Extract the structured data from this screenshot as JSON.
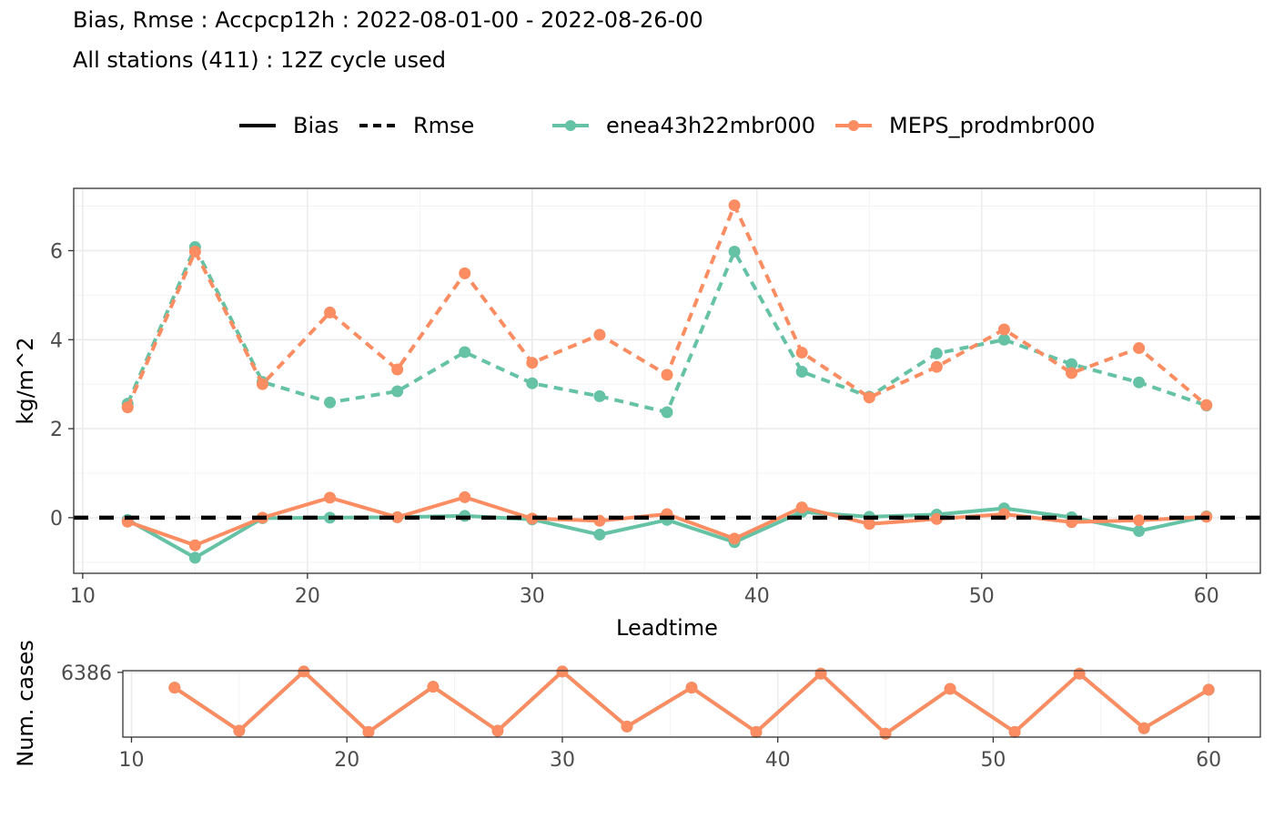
{
  "title": "Bias, Rmse : Accpcp12h : 2022-08-01-00 - 2022-08-26-00",
  "subtitle": "All stations (411) : 12Z cycle used",
  "legend": {
    "linetypes": [
      "Bias",
      "Rmse"
    ],
    "models": [
      "enea43h22mbr000",
      "MEPS_prodmbr000"
    ]
  },
  "colors": {
    "enea": "#66c2a5",
    "meps": "#fc8d62",
    "grid": "#ebebeb",
    "axis": "#333333"
  },
  "chart_data": [
    {
      "type": "line",
      "xlabel": "Leadtime",
      "ylabel": "kg/m^2",
      "xlim": [
        9.6,
        62.4
      ],
      "ylim": [
        -1.25,
        7.4
      ],
      "x_ticks": [
        10,
        20,
        30,
        40,
        50,
        60
      ],
      "y_ticks": [
        0,
        2,
        4,
        6
      ],
      "grid": true,
      "legend_position": "top",
      "x": [
        12,
        15,
        18,
        21,
        24,
        27,
        30,
        33,
        36,
        39,
        42,
        45,
        48,
        51,
        54,
        57,
        60
      ],
      "series": [
        {
          "name": "enea43h22mbr000",
          "stat": "Rmse",
          "linetype": "dashed",
          "values": [
            2.56,
            6.08,
            3.05,
            2.59,
            2.84,
            3.72,
            3.02,
            2.73,
            2.37,
            5.98,
            3.28,
            2.72,
            3.69,
            4.0,
            3.45,
            3.04,
            2.52
          ]
        },
        {
          "name": "MEPS_prodmbr000",
          "stat": "Rmse",
          "linetype": "dashed",
          "values": [
            2.48,
            5.98,
            3.0,
            4.61,
            3.33,
            5.49,
            3.48,
            4.11,
            3.21,
            7.02,
            3.71,
            2.7,
            3.39,
            4.23,
            3.25,
            3.81,
            2.53
          ]
        },
        {
          "name": "enea43h22mbr000",
          "stat": "Bias",
          "linetype": "solid",
          "values": [
            -0.05,
            -0.9,
            -0.01,
            0.0,
            0.01,
            0.04,
            -0.04,
            -0.38,
            -0.05,
            -0.55,
            0.13,
            0.02,
            0.07,
            0.21,
            0.01,
            -0.3,
            0.03
          ]
        },
        {
          "name": "MEPS_prodmbr000",
          "stat": "Bias",
          "linetype": "solid",
          "values": [
            -0.09,
            -0.62,
            0.0,
            0.45,
            0.01,
            0.46,
            -0.02,
            -0.07,
            0.08,
            -0.47,
            0.23,
            -0.14,
            -0.03,
            0.08,
            -0.1,
            -0.06,
            0.02
          ]
        }
      ],
      "hline": {
        "y": 0,
        "linetype": "dashed"
      }
    },
    {
      "type": "line",
      "xlabel": "",
      "ylabel": "Num. cases",
      "xlim": [
        9.6,
        62.4
      ],
      "ylim": [
        6233,
        6390
      ],
      "x_ticks": [
        10,
        20,
        30,
        40,
        50,
        60
      ],
      "y_ticks": [
        6386
      ],
      "grid": true,
      "x": [
        12,
        15,
        18,
        21,
        24,
        27,
        30,
        33,
        36,
        39,
        42,
        45,
        48,
        51,
        54,
        57,
        60
      ],
      "series": [
        {
          "name": "enea43h22mbr000",
          "values": [
            6350,
            6248,
            6388,
            6245,
            6352,
            6248,
            6388,
            6258,
            6350,
            6245,
            6383,
            6241,
            6347,
            6245,
            6383,
            6254,
            6345
          ]
        },
        {
          "name": "MEPS_prodmbr000",
          "values": [
            6350,
            6248,
            6388,
            6245,
            6352,
            6248,
            6388,
            6258,
            6350,
            6245,
            6383,
            6241,
            6347,
            6245,
            6383,
            6254,
            6345
          ]
        }
      ]
    }
  ]
}
